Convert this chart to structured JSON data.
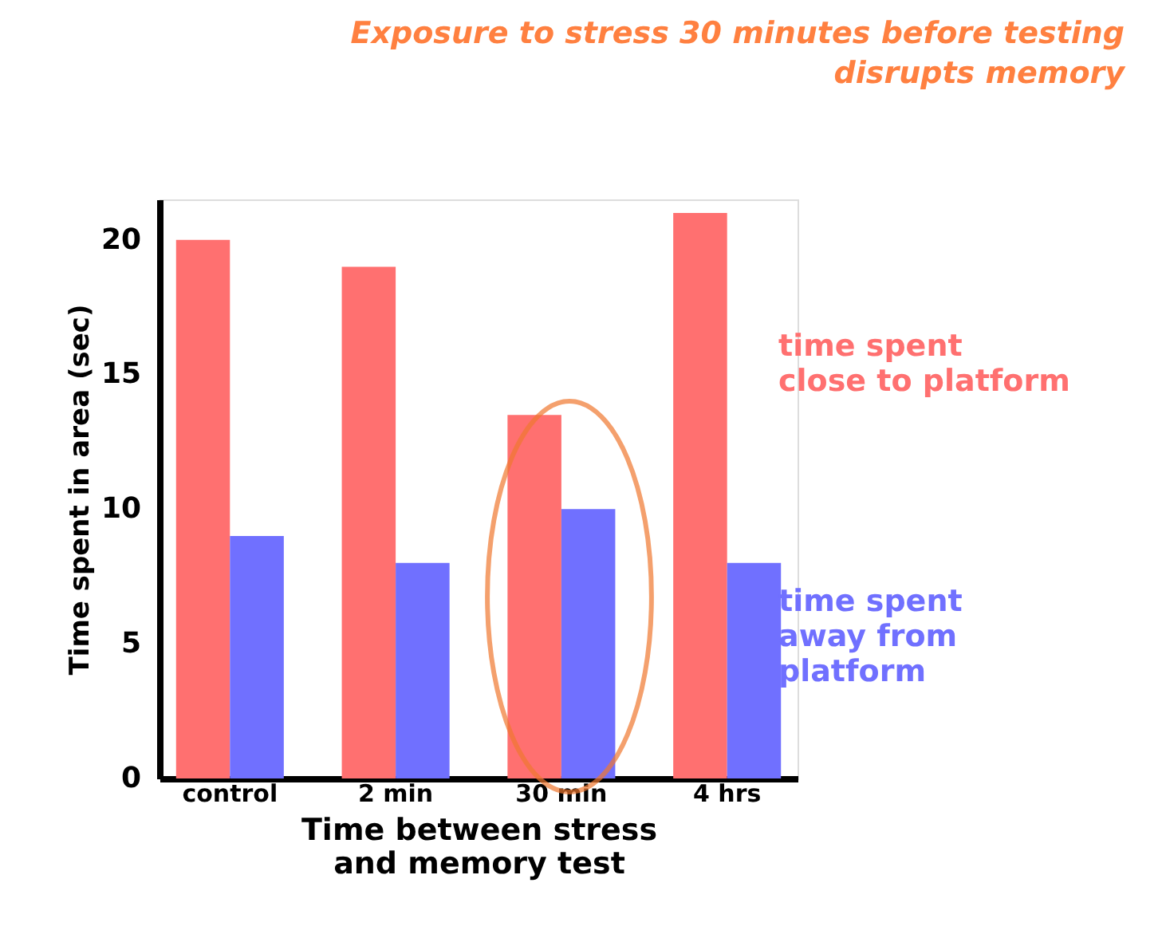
{
  "chart_data": {
    "type": "bar",
    "title": [
      "Exposure to stress 30 minutes before  testing",
      "disrupts memory"
    ],
    "xlabel": "Time between stress\nand memory test",
    "ylabel": "Time spent in area (sec)",
    "categories": [
      "control",
      "2 min",
      "30 min",
      "4 hrs"
    ],
    "series": [
      {
        "name": "time spent\nclose to platform",
        "color": "#ff7070",
        "values": [
          20,
          19,
          13.5,
          21
        ]
      },
      {
        "name": "time spent\naway from\nplatform",
        "color": "#7070ff",
        "values": [
          9,
          8,
          10,
          8
        ]
      }
    ],
    "ylim": [
      0,
      21.5
    ],
    "yticks": [
      0,
      5,
      10,
      15,
      20
    ],
    "grid": false
  }
}
